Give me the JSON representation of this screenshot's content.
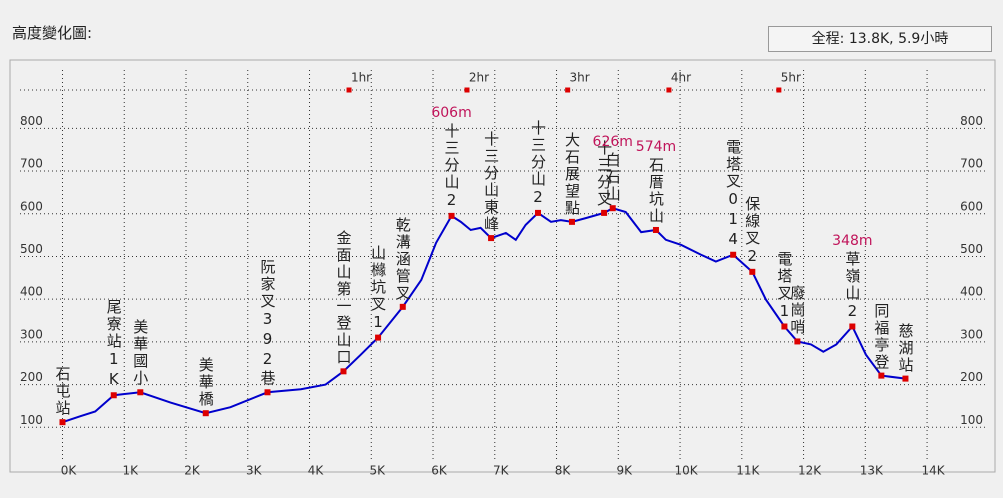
{
  "title": "高度變化圖:",
  "summary": "全程: 13.8K, 5.9小時",
  "chart_data": {
    "type": "line",
    "x": [
      0.0,
      0.29,
      0.53,
      0.83,
      1.26,
      1.75,
      2.32,
      2.72,
      3.32,
      3.86,
      4.26,
      4.55,
      4.83,
      5.11,
      5.51,
      5.81,
      6.05,
      6.3,
      6.45,
      6.61,
      6.77,
      6.94,
      7.18,
      7.34,
      7.5,
      7.7,
      7.91,
      8.07,
      8.25,
      8.48,
      8.77,
      8.91,
      9.12,
      9.37,
      9.61,
      9.77,
      10.02,
      10.34,
      10.58,
      10.86,
      11.17,
      11.39,
      11.69,
      11.9,
      12.12,
      12.32,
      12.53,
      12.79,
      13.01,
      13.26,
      13.65
    ],
    "series": [
      {
        "color": "#0000cc",
        "values": [
          112,
          126,
          137,
          175,
          182,
          158,
          133,
          147,
          182,
          189,
          200,
          231,
          270,
          310,
          382,
          445,
          532,
          595,
          581,
          562,
          567,
          543,
          555,
          539,
          574,
          602,
          581,
          585,
          581,
          590,
          602,
          613,
          604,
          557,
          562,
          539,
          527,
          504,
          488,
          504,
          464,
          399,
          336,
          301,
          294,
          277,
          294,
          336,
          270,
          221,
          214
        ]
      }
    ],
    "waypoints": [
      {
        "name": "石屯站",
        "x": 0.0,
        "y": 112
      },
      {
        "name": "尾寮站1K",
        "x": 0.83,
        "y": 175
      },
      {
        "name": "美華國小",
        "x": 1.26,
        "y": 182
      },
      {
        "name": "美華橋",
        "x": 2.32,
        "y": 133
      },
      {
        "name": "阮家叉392巷",
        "x": 3.32,
        "y": 182
      },
      {
        "name": "金面山第一登山口",
        "x": 4.55,
        "y": 231
      },
      {
        "name": "山櫞坑叉1",
        "x": 5.11,
        "y": 310
      },
      {
        "name": "乾溝涵管叉",
        "x": 5.51,
        "y": 382
      },
      {
        "name": "十三分山2",
        "x": 6.3,
        "y": 595,
        "elevation_label": "606m"
      },
      {
        "name": "十三分山東峰",
        "x": 6.94,
        "y": 543
      },
      {
        "name": "十三分山2",
        "x": 7.7,
        "y": 602
      },
      {
        "name": "大石展望點",
        "x": 8.25,
        "y": 581
      },
      {
        "name": "十三分叉",
        "x": 8.77,
        "y": 602
      },
      {
        "name": "白石山",
        "x": 8.91,
        "y": 613,
        "elevation_label": "626m"
      },
      {
        "name": "石厝坑山",
        "x": 9.61,
        "y": 562,
        "elevation_label": "574m"
      },
      {
        "name": "電塔叉014",
        "x": 10.86,
        "y": 504
      },
      {
        "name": "保線叉2",
        "x": 11.17,
        "y": 464
      },
      {
        "name": "電塔叉1",
        "x": 11.69,
        "y": 336
      },
      {
        "name": "廢崗哨",
        "x": 11.9,
        "y": 301
      },
      {
        "name": "草嶺山2",
        "x": 12.79,
        "y": 336,
        "elevation_label": "348m"
      },
      {
        "name": "同福亭登",
        "x": 13.26,
        "y": 221
      },
      {
        "name": "慈湖站",
        "x": 13.65,
        "y": 214
      }
    ],
    "time_markers": [
      {
        "label": "1hr",
        "x": 4.64
      },
      {
        "label": "2hr",
        "x": 6.55
      },
      {
        "label": "3hr",
        "x": 8.18
      },
      {
        "label": "4hr",
        "x": 9.82
      },
      {
        "label": "5hr",
        "x": 11.6
      }
    ],
    "marker_color": "#dd0000",
    "xlim": [
      -0.85,
      15.1
    ],
    "ylim": [
      0,
      960
    ],
    "xticks": [
      {
        "value": 0,
        "label": "0K"
      },
      {
        "value": 1,
        "label": "1K"
      },
      {
        "value": 2,
        "label": "2K"
      },
      {
        "value": 3,
        "label": "3K"
      },
      {
        "value": 4,
        "label": "4K"
      },
      {
        "value": 5,
        "label": "5K"
      },
      {
        "value": 6,
        "label": "6K"
      },
      {
        "value": 7,
        "label": "7K"
      },
      {
        "value": 8,
        "label": "8K"
      },
      {
        "value": 9,
        "label": "9K"
      },
      {
        "value": 10,
        "label": "10K"
      },
      {
        "value": 11,
        "label": "11K"
      },
      {
        "value": 12,
        "label": "12K"
      },
      {
        "value": 13,
        "label": "13K"
      },
      {
        "value": 14,
        "label": "14K"
      }
    ],
    "yticks": [
      100,
      200,
      300,
      400,
      500,
      600,
      700,
      800
    ],
    "grid": true
  }
}
